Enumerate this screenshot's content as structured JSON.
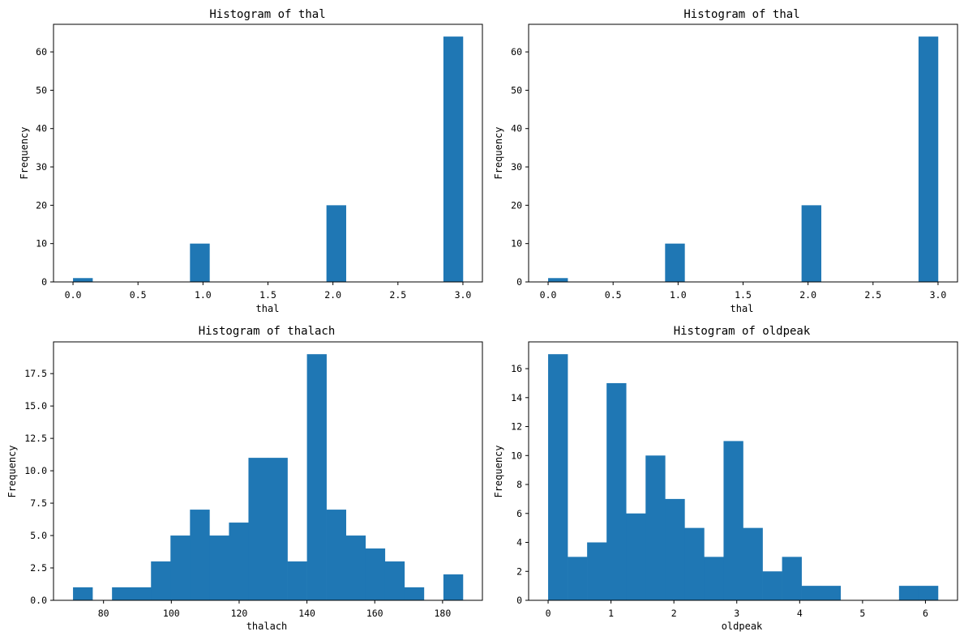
{
  "chart_data": [
    {
      "type": "bar",
      "title": "Histogram of thal",
      "xlabel": "thal",
      "ylabel": "Frequency",
      "bins": 20,
      "bin_range": [
        0,
        3
      ],
      "counts": [
        1,
        0,
        0,
        0,
        0,
        0,
        10,
        0,
        0,
        0,
        0,
        0,
        0,
        20,
        0,
        0,
        0,
        0,
        0,
        64
      ],
      "xlim": [
        -0.15,
        3.15
      ],
      "ylim": [
        0,
        67.2
      ],
      "xticks": [
        0,
        0.5,
        1,
        1.5,
        2,
        2.5,
        3
      ],
      "xtick_labels": [
        "0.0",
        "0.5",
        "1.0",
        "1.5",
        "2.0",
        "2.5",
        "3.0"
      ],
      "yticks": [
        0,
        10,
        20,
        30,
        40,
        50,
        60
      ],
      "ytick_labels": [
        "0",
        "10",
        "20",
        "30",
        "40",
        "50",
        "60"
      ],
      "color": "#1f77b4"
    },
    {
      "type": "bar",
      "title": "Histogram of thal",
      "xlabel": "thal",
      "ylabel": "Frequency",
      "bins": 20,
      "bin_range": [
        0,
        3
      ],
      "counts": [
        1,
        0,
        0,
        0,
        0,
        0,
        10,
        0,
        0,
        0,
        0,
        0,
        0,
        20,
        0,
        0,
        0,
        0,
        0,
        64
      ],
      "xlim": [
        -0.15,
        3.15
      ],
      "ylim": [
        0,
        67.2
      ],
      "xticks": [
        0,
        0.5,
        1,
        1.5,
        2,
        2.5,
        3
      ],
      "xtick_labels": [
        "0.0",
        "0.5",
        "1.0",
        "1.5",
        "2.0",
        "2.5",
        "3.0"
      ],
      "yticks": [
        0,
        10,
        20,
        30,
        40,
        50,
        60
      ],
      "ytick_labels": [
        "0",
        "10",
        "20",
        "30",
        "40",
        "50",
        "60"
      ],
      "color": "#1f77b4"
    },
    {
      "type": "bar",
      "title": "Histogram of thalach",
      "xlabel": "thalach",
      "ylabel": "Frequency",
      "bins": 20,
      "bin_range": [
        71,
        186
      ],
      "counts": [
        1,
        0,
        1,
        1,
        3,
        5,
        7,
        5,
        6,
        11,
        11,
        3,
        19,
        7,
        5,
        4,
        3,
        1,
        0,
        2
      ],
      "xlim": [
        65.25,
        191.75
      ],
      "ylim": [
        0,
        19.95
      ],
      "xticks": [
        80,
        100,
        120,
        140,
        160,
        180
      ],
      "xtick_labels": [
        "80",
        "100",
        "120",
        "140",
        "160",
        "180"
      ],
      "yticks": [
        0,
        2.5,
        5,
        7.5,
        10,
        12.5,
        15,
        17.5
      ],
      "ytick_labels": [
        "0.0",
        "2.5",
        "5.0",
        "7.5",
        "10.0",
        "12.5",
        "15.0",
        "17.5"
      ],
      "color": "#1f77b4"
    },
    {
      "type": "bar",
      "title": "Histogram of oldpeak",
      "xlabel": "oldpeak",
      "ylabel": "Frequency",
      "bins": 20,
      "bin_range": [
        0,
        6.2
      ],
      "counts": [
        17,
        3,
        4,
        15,
        6,
        10,
        7,
        5,
        3,
        11,
        5,
        2,
        3,
        1,
        1,
        0,
        0,
        0,
        1,
        1
      ],
      "xlim": [
        -0.31,
        6.51
      ],
      "ylim": [
        0,
        17.85
      ],
      "xticks": [
        0,
        1,
        2,
        3,
        4,
        5,
        6
      ],
      "xtick_labels": [
        "0",
        "1",
        "2",
        "3",
        "4",
        "5",
        "6"
      ],
      "yticks": [
        0,
        2,
        4,
        6,
        8,
        10,
        12,
        14,
        16
      ],
      "ytick_labels": [
        "0",
        "2",
        "4",
        "6",
        "8",
        "10",
        "12",
        "14",
        "16"
      ],
      "color": "#1f77b4"
    }
  ]
}
